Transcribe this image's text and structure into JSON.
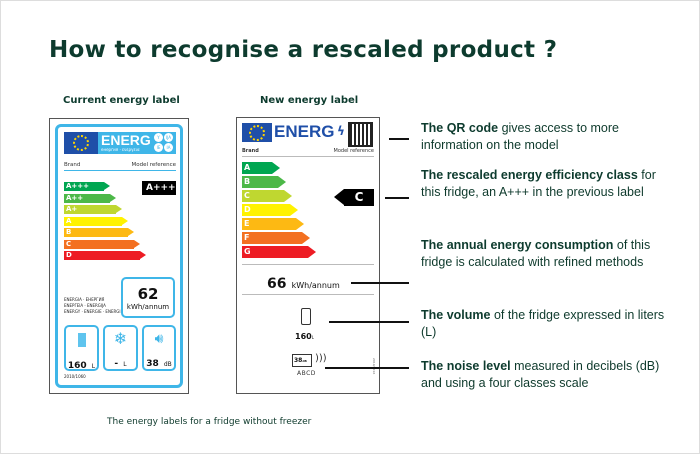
{
  "title": "How to recognise a rescaled product ?",
  "current": {
    "heading": "Current energy label",
    "energ": "ENERG",
    "energ_sub": "енергия · ενεργεια",
    "lang_badges": [
      "Y",
      "IJA",
      "IE",
      "IA"
    ],
    "brand": "Brand",
    "model": "Model reference",
    "classes": [
      "A+++",
      "A++",
      "A+",
      "A",
      "B",
      "C",
      "D"
    ],
    "class_colors": [
      "#00a651",
      "#4cb848",
      "#bfd730",
      "#fff200",
      "#fdb913",
      "#f37021",
      "#ed1c24"
    ],
    "rating": "A+++",
    "energy_words": [
      "ENERGIA · ЕНЕРГИЯ",
      "ΕΝΕΡΓΕΙΑ · ENERGIJA",
      "ENERGY · ENERGIE · ENERGI"
    ],
    "kwh": "62",
    "kwh_unit": "kWh/annum",
    "volume": "160",
    "volume_unit": "L",
    "freezer": "-",
    "freezer_unit": "L",
    "noise": "38",
    "noise_unit": "dB",
    "regulation": "2010/1060"
  },
  "new": {
    "heading": "New energy label",
    "energ": "ENERG",
    "brand": "Brand",
    "model": "Model reference",
    "classes": [
      "A",
      "B",
      "C",
      "D",
      "E",
      "F",
      "G"
    ],
    "class_colors": [
      "#00a651",
      "#4cb848",
      "#bfd730",
      "#fff200",
      "#fdb913",
      "#f37021",
      "#ed1c24"
    ],
    "rating": "C",
    "kwh": "66",
    "kwh_unit": "kWh/annum",
    "volume": "160",
    "volume_unit": "L",
    "noise": "38",
    "noise_unit": "dB",
    "noise_classes": "ABCD",
    "regulation": "2019/2016"
  },
  "descriptions": [
    {
      "bold": "The QR code",
      "rest": " gives access to more information on the model"
    },
    {
      "bold": "The rescaled energy efficiency class",
      "rest": " for this fridge, an A+++ in the previous label"
    },
    {
      "bold": "The annual energy consumption",
      "rest": " of this fridge is calculated with refined methods"
    },
    {
      "bold": "The volume",
      "rest": " of the fridge expressed in liters (L)"
    },
    {
      "bold": "The noise level",
      "rest": " measured in decibels (dB) and using a four classes scale"
    }
  ],
  "caption": "The energy labels for a fridge without freezer"
}
